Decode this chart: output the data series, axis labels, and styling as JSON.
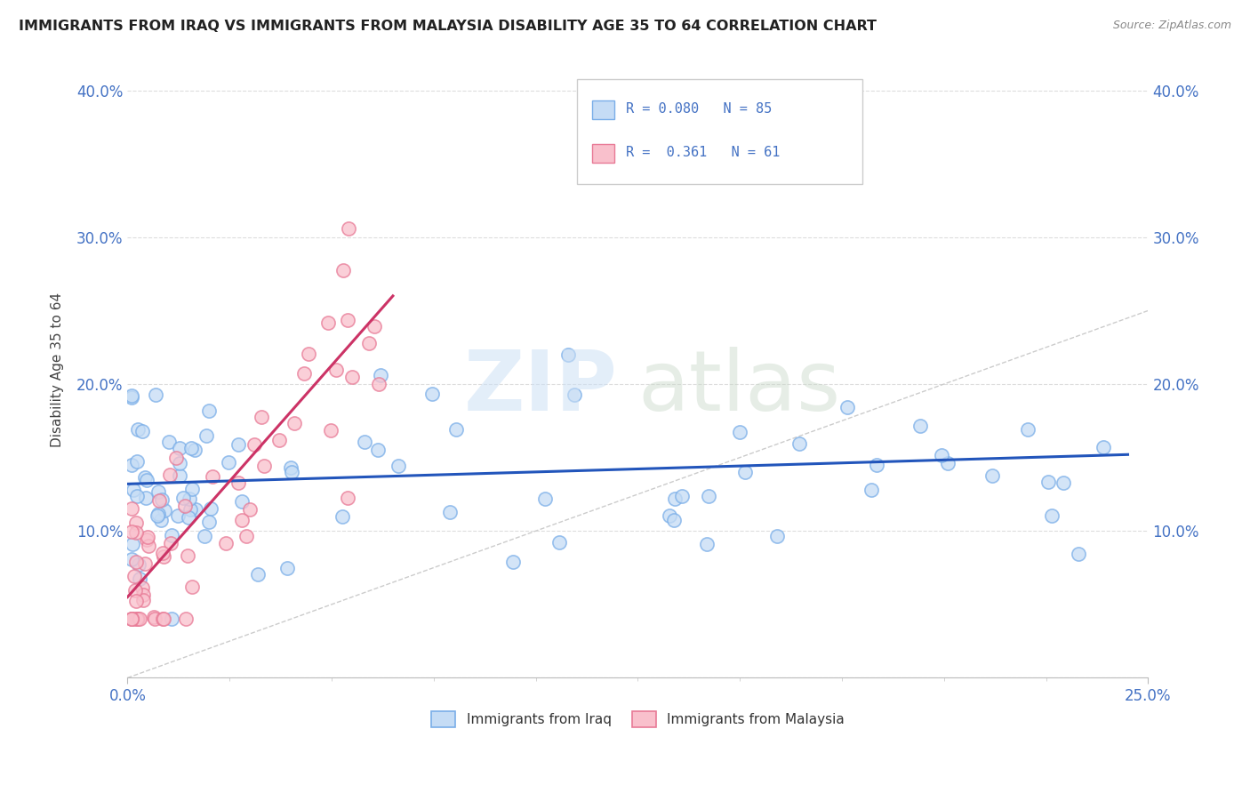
{
  "title": "IMMIGRANTS FROM IRAQ VS IMMIGRANTS FROM MALAYSIA DISABILITY AGE 35 TO 64 CORRELATION CHART",
  "source_text": "Source: ZipAtlas.com",
  "ylabel": "Disability Age 35 to 64",
  "xlim": [
    0.0,
    0.25
  ],
  "ylim": [
    0.0,
    0.42
  ],
  "iraq_color_fill": "#c5dcf5",
  "iraq_color_edge": "#7aaee8",
  "malaysia_color_fill": "#f9c0cc",
  "malaysia_color_edge": "#e87a96",
  "iraq_trend_color": "#2255bb",
  "malaysia_trend_color": "#cc3366",
  "diag_color": "#cccccc",
  "grid_color": "#dddddd",
  "tick_label_color": "#4472c4",
  "title_color": "#222222",
  "source_color": "#888888",
  "watermark_zip_color": "#cce0f5",
  "watermark_atlas_color": "#c8d8c8",
  "background_color": "#ffffff",
  "legend_r1": "R = 0.080",
  "legend_n1": "N = 85",
  "legend_r2": "R =  0.361",
  "legend_n2": "N = 61",
  "iraq_trend_x": [
    0.0,
    0.245
  ],
  "iraq_trend_y": [
    0.132,
    0.152
  ],
  "malaysia_trend_x": [
    0.0,
    0.065
  ],
  "malaysia_trend_y": [
    0.055,
    0.26
  ]
}
